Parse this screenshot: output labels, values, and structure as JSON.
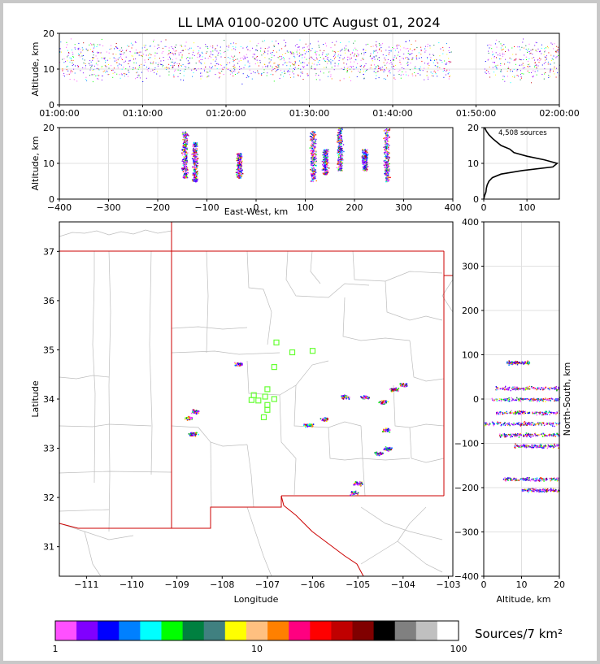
{
  "title": "LL LMA 0100-0200 UTC August 01, 2024",
  "colors": {
    "frame": "#c8c8c8",
    "border": "#cc0000",
    "county": "#bdbdbd",
    "grid": "#e0e0e0"
  },
  "chart_data": [
    {
      "id": "time-height",
      "type": "scatter",
      "ylabel": "Altitude, km",
      "xlim": [
        "01:00:00",
        "02:00:00"
      ],
      "ylim": [
        0,
        20
      ],
      "xticks": [
        "01:00:00",
        "01:10:00",
        "01:20:00",
        "01:30:00",
        "01:40:00",
        "01:50:00",
        "02:00:00"
      ],
      "yticks": [
        0,
        10,
        20
      ],
      "dense_time_ranges_min": [
        [
          0,
          47
        ],
        [
          51,
          60
        ]
      ],
      "typical_altitude_km": [
        8,
        17
      ]
    },
    {
      "id": "ew-altitude",
      "type": "scatter",
      "xlabel": "East-West, km",
      "ylabel": "Altitude, km",
      "xlim": [
        -400,
        400
      ],
      "ylim": [
        0,
        20
      ],
      "xticks": [
        -400,
        -300,
        -200,
        -100,
        0,
        100,
        200,
        300,
        400
      ],
      "yticks": [
        0,
        10,
        20
      ],
      "clusters": [
        {
          "x": -145,
          "alt": [
            6,
            19
          ]
        },
        {
          "x": -125,
          "alt": [
            5,
            16
          ]
        },
        {
          "x": -35,
          "alt": [
            6,
            13
          ]
        },
        {
          "x": 115,
          "alt": [
            5,
            19
          ]
        },
        {
          "x": 140,
          "alt": [
            7,
            14
          ]
        },
        {
          "x": 170,
          "alt": [
            8,
            20
          ]
        },
        {
          "x": 220,
          "alt": [
            8,
            14
          ]
        },
        {
          "x": 265,
          "alt": [
            5,
            20
          ]
        }
      ]
    },
    {
      "id": "altitude-histogram",
      "type": "line",
      "annotation": "4,508 sources",
      "xlim": [
        0,
        175
      ],
      "ylim": [
        0,
        20
      ],
      "xticks": [
        0,
        100
      ],
      "yticks": [
        0,
        10,
        20
      ],
      "altitude_km": [
        0,
        1,
        2,
        3,
        4,
        5,
        6,
        7,
        8,
        9,
        10,
        11,
        12,
        13,
        14,
        15,
        16,
        17,
        18,
        19,
        20
      ],
      "count": [
        0,
        2,
        5,
        6,
        8,
        12,
        20,
        40,
        90,
        160,
        170,
        140,
        100,
        70,
        60,
        40,
        30,
        20,
        12,
        6,
        2
      ]
    },
    {
      "id": "plan-view",
      "type": "scatter",
      "xlabel": "Longitude",
      "ylabel": "Latitude",
      "xlim": [
        -111.6,
        -102.9
      ],
      "ylim": [
        30.4,
        37.6
      ],
      "xticks": [
        -111,
        -110,
        -109,
        -108,
        -107,
        -106,
        -105,
        -104,
        -103
      ],
      "yticks": [
        31,
        32,
        33,
        34,
        35,
        36,
        37
      ],
      "stations": [
        [
          -106.8,
          35.15
        ],
        [
          -106.45,
          34.95
        ],
        [
          -106.0,
          34.98
        ],
        [
          -106.85,
          34.65
        ],
        [
          -107.0,
          34.2
        ],
        [
          -107.3,
          34.08
        ],
        [
          -107.05,
          34.05
        ],
        [
          -106.85,
          34.0
        ],
        [
          -107.35,
          33.98
        ],
        [
          -107.2,
          33.97
        ],
        [
          -107.0,
          33.88
        ],
        [
          -107.0,
          33.78
        ],
        [
          -107.08,
          33.63
        ]
      ],
      "source_clusters": [
        [
          -108.6,
          33.75
        ],
        [
          -108.75,
          33.62
        ],
        [
          -108.65,
          33.3
        ],
        [
          -107.65,
          34.72
        ],
        [
          -106.1,
          33.48
        ],
        [
          -105.75,
          33.6
        ],
        [
          -105.3,
          34.05
        ],
        [
          -104.85,
          34.05
        ],
        [
          -104.45,
          33.95
        ],
        [
          -104.2,
          34.2
        ],
        [
          -104.0,
          34.3
        ],
        [
          -104.35,
          33.0
        ],
        [
          -104.55,
          32.9
        ],
        [
          -104.38,
          33.38
        ],
        [
          -105.0,
          32.3
        ],
        [
          -105.1,
          32.1
        ]
      ]
    },
    {
      "id": "ns-altitude",
      "type": "scatter",
      "xlabel": "Altitude, km",
      "ylabel": "North-South, km",
      "xlim": [
        0,
        20
      ],
      "ylim": [
        -400,
        400
      ],
      "xticks": [
        0,
        10,
        20
      ],
      "yticks": [
        -400,
        -300,
        -200,
        -100,
        0,
        100,
        200,
        300,
        400
      ],
      "clusters": [
        {
          "ns": 83,
          "alt": [
            6,
            12
          ]
        },
        {
          "ns": 25,
          "alt": [
            3,
            20
          ]
        },
        {
          "ns": 0,
          "alt": [
            2,
            20
          ]
        },
        {
          "ns": -30,
          "alt": [
            3,
            20
          ]
        },
        {
          "ns": -55,
          "alt": [
            0,
            20
          ]
        },
        {
          "ns": -80,
          "alt": [
            4,
            20
          ]
        },
        {
          "ns": -105,
          "alt": [
            8,
            20
          ]
        },
        {
          "ns": -180,
          "alt": [
            5,
            20
          ]
        },
        {
          "ns": -205,
          "alt": [
            10,
            20
          ]
        }
      ]
    }
  ],
  "colorbar": {
    "label": "Sources/7 km²",
    "tick_labels": [
      "1",
      "10",
      "100"
    ],
    "tick_values": [
      1,
      10,
      100
    ],
    "colors": [
      "#ff50ff",
      "#8000ff",
      "#0000ff",
      "#0080ff",
      "#00ffff",
      "#00ff00",
      "#008040",
      "#408080",
      "#ffff00",
      "#ffc080",
      "#ff8000",
      "#ff0080",
      "#ff0000",
      "#c00000",
      "#800000",
      "#000000",
      "#808080",
      "#c0c0c0",
      "#ffffff"
    ]
  }
}
